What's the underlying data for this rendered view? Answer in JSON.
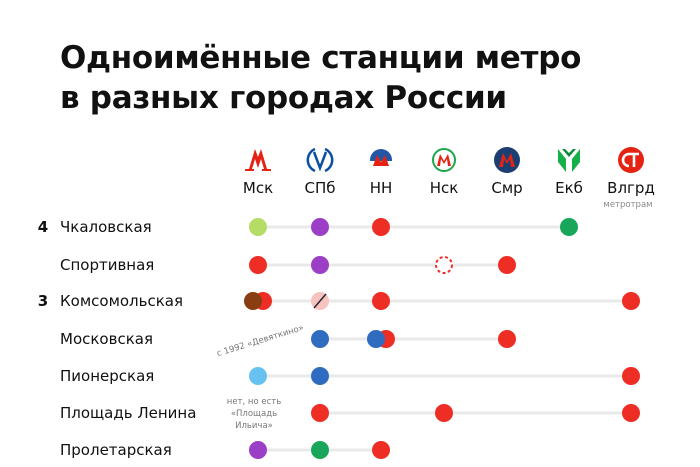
{
  "title_lines": [
    "Одноимённые станции метро",
    "в разных городах России"
  ],
  "chart_data": {
    "type": "table",
    "cities": [
      {
        "label": "Мск",
        "logo": "moscow-metro-logo",
        "color": "#e42313"
      },
      {
        "label": "СПб",
        "logo": "spb-metro-logo",
        "color": "#0a4fa3"
      },
      {
        "label": "НН",
        "logo": "nn-metro-logo",
        "color": "#e42313"
      },
      {
        "label": "Нск",
        "logo": "nsk-metro-logo",
        "color": "#e42313"
      },
      {
        "label": "Смр",
        "logo": "samara-metro-logo",
        "color": "#1c3f73"
      },
      {
        "label": "Екб",
        "logo": "ekb-metro-logo",
        "color": "#1aa64b"
      },
      {
        "label": "Влгрд",
        "sublabel": "метротрам",
        "logo": "volgograd-metrotram-logo",
        "color": "#e42313"
      }
    ],
    "rows": [
      {
        "count": "4",
        "name": "Чкаловская",
        "stations": [
          {
            "city": 0,
            "colors": [
              "#b5dc64"
            ]
          },
          {
            "city": 1,
            "colors": [
              "#9b3fc6"
            ]
          },
          {
            "city": 2,
            "colors": [
              "#ee2e24"
            ]
          },
          {
            "city": 5,
            "colors": [
              "#18a65a"
            ]
          }
        ]
      },
      {
        "count": "",
        "name": "Спортивная",
        "stations": [
          {
            "city": 0,
            "colors": [
              "#ee2e24"
            ]
          },
          {
            "city": 1,
            "colors": [
              "#9b3fc6"
            ]
          },
          {
            "city": 3,
            "colors": [
              "#ee2e24"
            ],
            "style": "dashed"
          },
          {
            "city": 4,
            "colors": [
              "#ee2e24"
            ]
          }
        ]
      },
      {
        "count": "3",
        "name": "Комсомольская",
        "stations": [
          {
            "city": 0,
            "colors": [
              "#8a3d10",
              "#ee2e24"
            ]
          },
          {
            "city": 1,
            "colors": [
              "#f6c3c1"
            ],
            "style": "struck"
          },
          {
            "city": 2,
            "colors": [
              "#ee2e24"
            ]
          },
          {
            "city": 6,
            "colors": [
              "#ee2e24"
            ]
          }
        ]
      },
      {
        "count": "",
        "name": "Московская",
        "stations": [
          {
            "city": 1,
            "colors": [
              "#2f6cc0"
            ]
          },
          {
            "city": 2,
            "colors": [
              "#2f6cc0",
              "#ee2e24"
            ]
          },
          {
            "city": 4,
            "colors": [
              "#ee2e24"
            ]
          }
        ]
      },
      {
        "count": "",
        "name": "Пионерская",
        "stations": [
          {
            "city": 0,
            "colors": [
              "#67c2f2"
            ]
          },
          {
            "city": 1,
            "colors": [
              "#2f6cc0"
            ]
          },
          {
            "city": 6,
            "colors": [
              "#ee2e24"
            ]
          }
        ]
      },
      {
        "count": "",
        "name": "Площадь Ленина",
        "stations": [
          {
            "city": 1,
            "colors": [
              "#ee2e24"
            ]
          },
          {
            "city": 3,
            "colors": [
              "#ee2e24"
            ]
          },
          {
            "city": 6,
            "colors": [
              "#ee2e24"
            ]
          }
        ]
      },
      {
        "count": "",
        "name": "Пролетарская",
        "stations": [
          {
            "city": 0,
            "colors": [
              "#9b3fc6"
            ]
          },
          {
            "city": 1,
            "colors": [
              "#18a65a"
            ]
          },
          {
            "city": 2,
            "colors": [
              "#ee2e24"
            ]
          }
        ]
      }
    ],
    "annotations": [
      {
        "text": "с 1992 «Девяткино»",
        "near_row": 2,
        "near_city": 1
      },
      {
        "text_lines": [
          "нет, но есть",
          "«Площадь",
          "Ильича»"
        ],
        "near_row": 5,
        "near_city": 0
      }
    ]
  }
}
